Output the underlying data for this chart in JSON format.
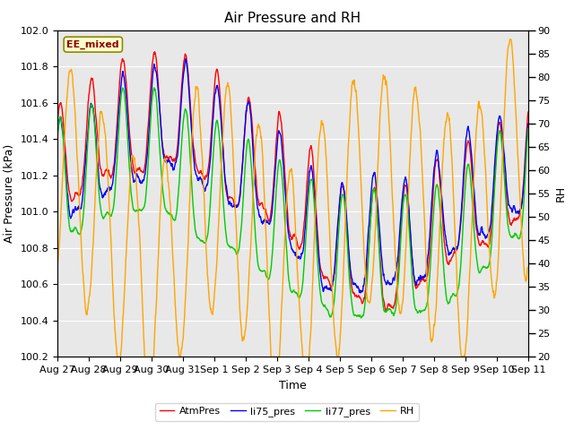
{
  "title": "Air Pressure and RH",
  "xlabel": "Time",
  "ylabel_left": "Air Pressure (kPa)",
  "ylabel_right": "RH",
  "ylim_left": [
    100.2,
    102.0
  ],
  "ylim_right": [
    20,
    90
  ],
  "yticks_left": [
    100.2,
    100.4,
    100.6,
    100.8,
    101.0,
    101.2,
    101.4,
    101.6,
    101.8,
    102.0
  ],
  "yticks_right": [
    20,
    25,
    30,
    35,
    40,
    45,
    50,
    55,
    60,
    65,
    70,
    75,
    80,
    85,
    90
  ],
  "xtick_labels": [
    "Aug 27",
    "Aug 28",
    "Aug 29",
    "Aug 30",
    "Aug 31",
    "Sep 1",
    "Sep 2",
    "Sep 3",
    "Sep 4",
    "Sep 5",
    "Sep 6",
    "Sep 7",
    "Sep 8",
    "Sep 9",
    "Sep 10",
    "Sep 11"
  ],
  "annotation_text": "EE_mixed",
  "annotation_color": "#8B0000",
  "annotation_bg": "#FFFFCC",
  "line_colors": {
    "AtmPres": "#FF0000",
    "li75_pres": "#0000FF",
    "li77_pres": "#00CC00",
    "RH": "#FFA500"
  },
  "legend_labels": [
    "AtmPres",
    "li75_pres",
    "li77_pres",
    "RH"
  ],
  "bg_color": "#E8E8E8",
  "grid_color": "#FFFFFF",
  "title_fontsize": 11,
  "axis_fontsize": 9,
  "tick_fontsize": 8,
  "figsize": [
    6.4,
    4.8
  ],
  "dpi": 100
}
